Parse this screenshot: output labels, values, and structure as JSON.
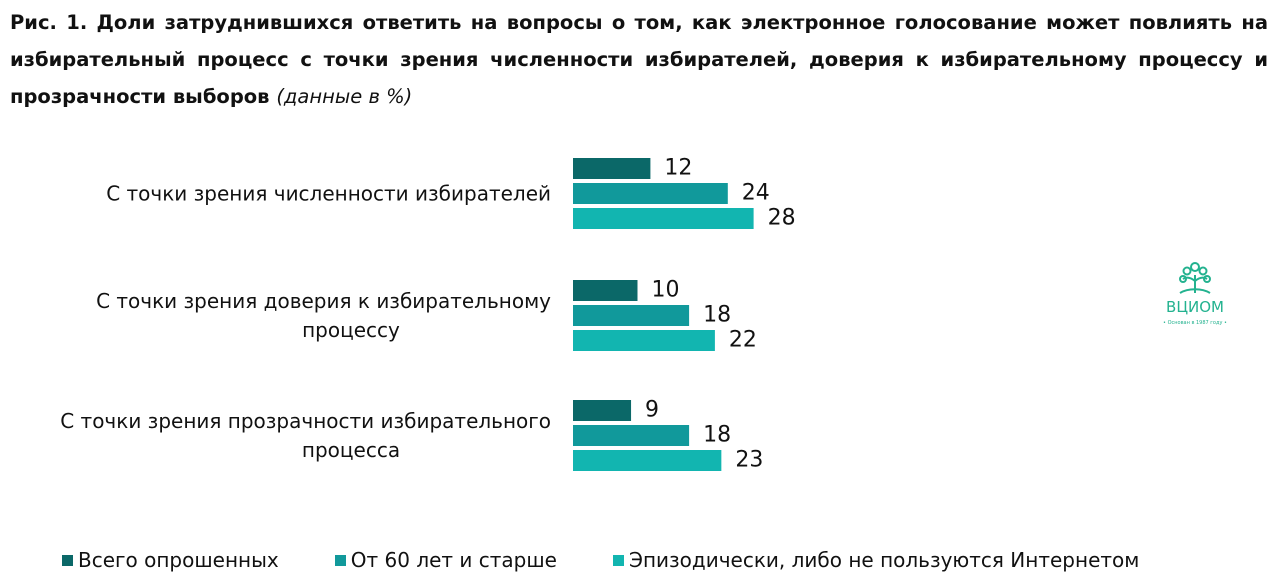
{
  "title": {
    "main": "Рис. 1. Доли затруднившихся ответить на вопросы о том, как электронное голосование может повлиять на избирательный процесс с точки зрения численности избирателей, доверия к избирательному процессу и прозрачности выборов",
    "note": "(данные в %)"
  },
  "chart_data": {
    "type": "bar",
    "orientation": "horizontal",
    "categories": [
      "С точки зрения численности избирателей",
      "С точки зрения доверия к избирательному процессу",
      "С точки зрения прозрачности избирательного процесса"
    ],
    "category_lines": [
      [
        "С точки зрения численности избирателей"
      ],
      [
        "С точки зрения доверия к избирательному",
        "процессу"
      ],
      [
        "С точки зрения прозрачности избирательного",
        "процесса"
      ]
    ],
    "series": [
      {
        "name": "Всего опрошенных",
        "color": "#0b6868",
        "values": [
          12,
          10,
          9
        ]
      },
      {
        "name": "От 60 лет и старше",
        "color": "#11999b",
        "values": [
          24,
          18,
          18
        ]
      },
      {
        "name": "Эпизодически, либо не пользуются Интернетом",
        "color": "#12b5b0",
        "values": [
          28,
          22,
          23
        ]
      }
    ],
    "data_labels": true,
    "legend_position": "bottom",
    "grid": false
  },
  "logo": {
    "name": "ВЦИОМ",
    "tagline": "• Основан в 1987 году •",
    "color": "#23b28f"
  }
}
